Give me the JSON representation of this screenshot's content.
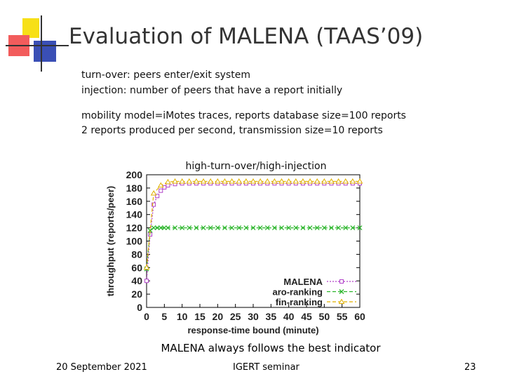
{
  "slide": {
    "title": "Evaluation of MALENA (TAAS’09)",
    "bullets": [
      "turn-over: peers enter/exit system",
      "injection: number of peers that have a report initially"
    ],
    "params": [
      "mobility model=iMotes traces, reports database size=100 reports",
      "2 reports produced per second, transmission size=10 reports"
    ],
    "conclusion": "MALENA always follows the best indicator",
    "footer": {
      "date": "20 September 2021",
      "event": "IGERT seminar",
      "page": "23"
    },
    "colors": {
      "deco_yellow": "#f7e017",
      "deco_red": "#f25c5c",
      "deco_blue": "#3a4fb5"
    }
  },
  "chart_data": {
    "type": "line",
    "title": "high-turn-over/high-injection",
    "xlabel": "response-time bound (minute)",
    "ylabel": "throughput (reports/peer)",
    "xlim": [
      0,
      60
    ],
    "ylim": [
      0,
      200
    ],
    "xticks": [
      0,
      5,
      10,
      15,
      20,
      25,
      30,
      35,
      40,
      45,
      50,
      55,
      60
    ],
    "yticks": [
      0,
      20,
      40,
      60,
      80,
      100,
      120,
      140,
      160,
      180,
      200
    ],
    "grid": false,
    "legend_position": "bottom-right",
    "series": [
      {
        "name": "MALENA",
        "color": "#b040c8",
        "marker": "square",
        "dash": "dotted",
        "x": [
          0,
          1,
          2,
          3,
          4,
          5,
          6,
          8,
          10,
          12,
          14,
          16,
          18,
          20,
          22,
          24,
          26,
          28,
          30,
          32,
          34,
          36,
          38,
          40,
          42,
          44,
          46,
          48,
          50,
          52,
          54,
          56,
          58,
          60
        ],
        "y": [
          40,
          110,
          155,
          168,
          176,
          181,
          184,
          186,
          187,
          187,
          187,
          187,
          187,
          187,
          187,
          187,
          187,
          187,
          187,
          187,
          187,
          187,
          187,
          187,
          187,
          187,
          187,
          187,
          187,
          187,
          187,
          187,
          187,
          187
        ]
      },
      {
        "name": "aro-ranking",
        "color": "#2ab52a",
        "marker": "x",
        "dash": "dashed",
        "x": [
          0,
          1,
          2,
          3,
          4,
          5,
          6,
          8,
          10,
          12,
          14,
          16,
          18,
          20,
          22,
          24,
          26,
          28,
          30,
          32,
          34,
          36,
          38,
          40,
          42,
          44,
          46,
          48,
          50,
          52,
          54,
          56,
          58,
          60
        ],
        "y": [
          58,
          116,
          120,
          120,
          120,
          120,
          120,
          120,
          120,
          120,
          120,
          120,
          120,
          120,
          120,
          120,
          120,
          120,
          120,
          120,
          120,
          120,
          120,
          120,
          120,
          120,
          120,
          120,
          120,
          120,
          120,
          120,
          120,
          120
        ]
      },
      {
        "name": "fin-ranking",
        "color": "#e0b000",
        "marker": "triangle",
        "dash": "dashed",
        "x": [
          0,
          2,
          4,
          6,
          8,
          10,
          12,
          14,
          16,
          18,
          20,
          22,
          24,
          26,
          28,
          30,
          32,
          34,
          36,
          38,
          40,
          42,
          44,
          46,
          48,
          50,
          52,
          54,
          56,
          58,
          60
        ],
        "y": [
          60,
          172,
          184,
          189,
          190,
          190,
          190,
          190,
          190,
          190,
          190,
          190,
          190,
          190,
          190,
          190,
          190,
          190,
          190,
          190,
          190,
          190,
          190,
          190,
          190,
          190,
          190,
          190,
          190,
          190,
          190
        ]
      }
    ]
  }
}
